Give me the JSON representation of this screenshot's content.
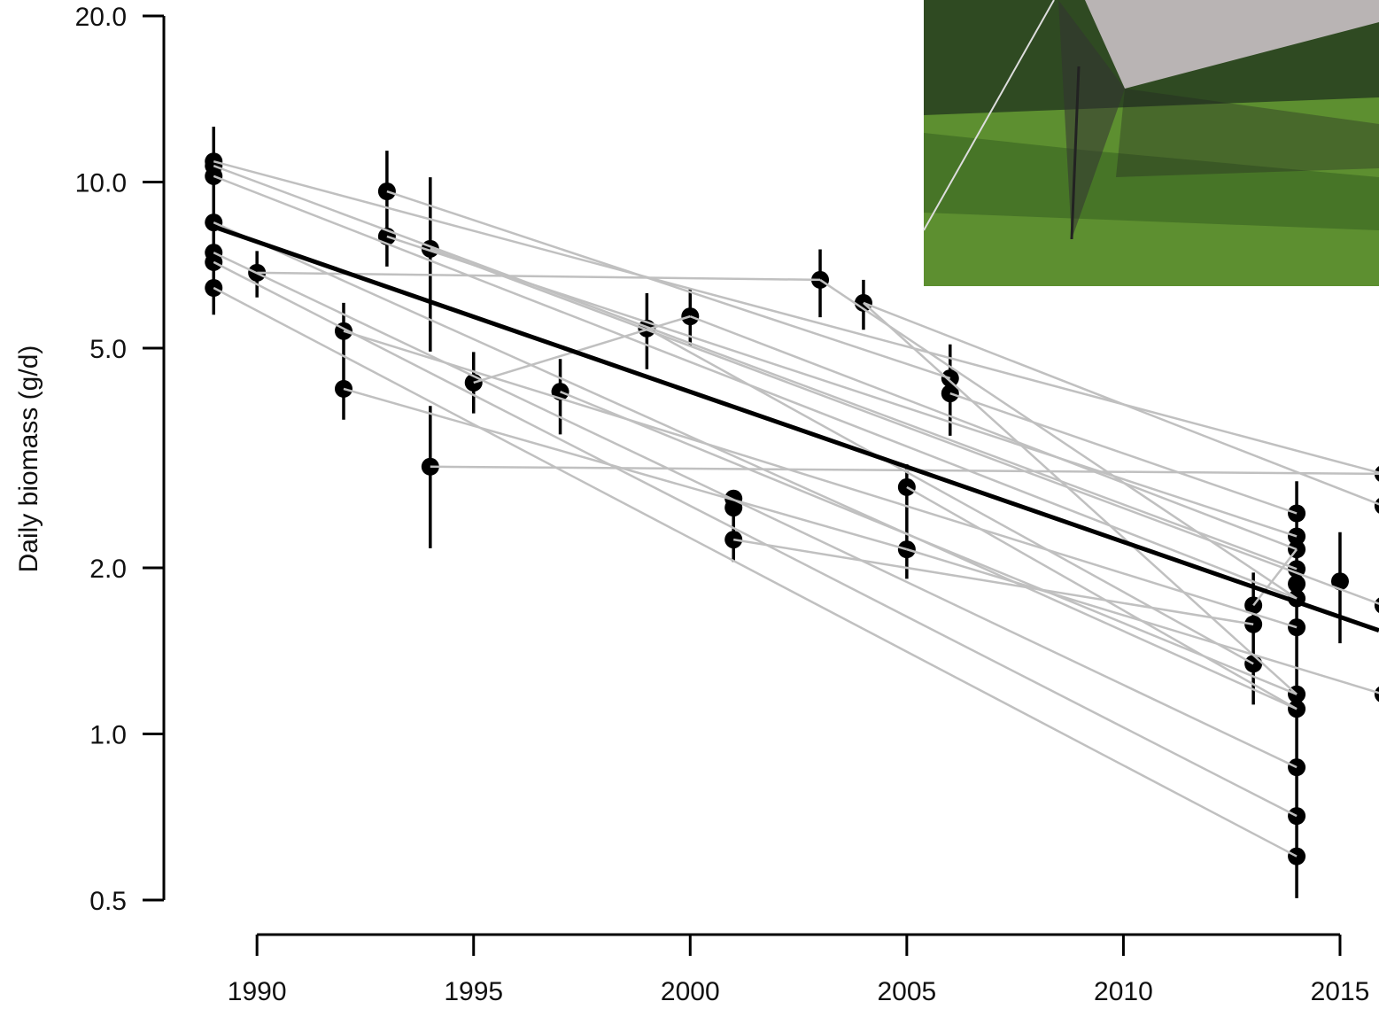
{
  "chart_data": {
    "type": "scatter",
    "y_label": "Daily biomass (g/d)",
    "log_y": true,
    "xlim": [
      1987.85,
      2015.9
    ],
    "ylim": [
      0.5,
      20
    ],
    "xticks": [
      1990,
      1995,
      2000,
      2005,
      2010,
      2015
    ],
    "yticks": [
      {
        "value": 0.5,
        "label": "0.5"
      },
      {
        "value": 1,
        "label": "1.0"
      },
      {
        "value": 2,
        "label": "2.0"
      },
      {
        "value": 5,
        "label": "5.0"
      },
      {
        "value": 10,
        "label": "10.0"
      },
      {
        "value": 20,
        "label": "20.0"
      }
    ],
    "point_color": "#000000",
    "track_color": "#c0c0c0",
    "fit_color": "#000000",
    "points": {
      "x": [
        1989,
        1989,
        1989,
        1989,
        1989,
        1989,
        1989,
        1990,
        1992,
        1992,
        1993,
        1993,
        1994,
        1994,
        1995,
        1997,
        1999,
        2000,
        2001,
        2001,
        2001,
        2003,
        2004,
        2005,
        2005,
        2006,
        2006,
        2013,
        2013,
        2013,
        2014,
        2014,
        2014,
        2014,
        2014,
        2014,
        2014,
        2014,
        2014,
        2014,
        2014,
        2014,
        2015,
        2016,
        2016,
        2016,
        2016
      ],
      "y": [
        10.9,
        10.7,
        10.25,
        8.45,
        7.45,
        7.16,
        6.43,
        6.85,
        5.37,
        4.22,
        9.62,
        7.97,
        7.57,
        3.05,
        4.33,
        4.17,
        5.43,
        5.71,
        2.67,
        2.57,
        2.25,
        6.65,
        6.04,
        2.8,
        2.16,
        4.41,
        4.14,
        1.71,
        1.58,
        1.34,
        2.51,
        2.28,
        2.16,
        1.99,
        1.87,
        1.76,
        1.56,
        1.18,
        1.11,
        0.87,
        0.71,
        0.6,
        1.89,
        2.96,
        2.59,
        1.71,
        1.18
      ]
    },
    "error_bars": {
      "x": [
        1989,
        1990,
        1992,
        1993,
        1994,
        1994,
        1995,
        1997,
        1999,
        2000,
        2001,
        2003,
        2004,
        2005,
        2006,
        2013,
        2014,
        2015
      ],
      "low": [
        5.75,
        6.18,
        3.71,
        7.03,
        4.93,
        2.17,
        3.81,
        3.49,
        4.58,
        5.04,
        2.05,
        5.69,
        5.4,
        1.91,
        3.47,
        1.13,
        0.504,
        1.46
      ],
      "high": [
        12.6,
        7.5,
        6.04,
        11.4,
        10.2,
        3.93,
        4.92,
        4.78,
        6.29,
        6.43,
        2.75,
        7.55,
        6.65,
        3.08,
        5.08,
        1.96,
        2.87,
        2.32
      ]
    },
    "tracks": [
      {
        "x": [
          1989,
          2016
        ],
        "y": [
          10.9,
          2.96
        ]
      },
      {
        "x": [
          1989,
          2014
        ],
        "y": [
          10.7,
          1.99
        ]
      },
      {
        "x": [
          1989,
          2014
        ],
        "y": [
          10.25,
          1.76
        ]
      },
      {
        "x": [
          1989,
          2014
        ],
        "y": [
          8.45,
          1.11
        ]
      },
      {
        "x": [
          1989,
          2014
        ],
        "y": [
          7.45,
          0.87
        ]
      },
      {
        "x": [
          1989,
          2014
        ],
        "y": [
          7.16,
          0.71
        ]
      },
      {
        "x": [
          1989,
          2014
        ],
        "y": [
          6.43,
          0.6
        ]
      },
      {
        "x": [
          1990,
          2003
        ],
        "y": [
          6.85,
          6.65
        ]
      },
      {
        "x": [
          2003,
          2014
        ],
        "y": [
          6.65,
          1.76
        ]
      },
      {
        "x": [
          2004,
          2016
        ],
        "y": [
          6.04,
          2.59
        ]
      },
      {
        "x": [
          2004,
          2014
        ],
        "y": [
          6.04,
          1.18
        ]
      },
      {
        "x": [
          1992,
          2014
        ],
        "y": [
          5.37,
          1.56
        ]
      },
      {
        "x": [
          1992,
          2005
        ],
        "y": [
          4.22,
          2.16
        ]
      },
      {
        "x": [
          1993,
          2006
        ],
        "y": [
          9.62,
          4.41
        ]
      },
      {
        "x": [
          1993,
          2014
        ],
        "y": [
          7.97,
          2.28
        ]
      },
      {
        "x": [
          1994,
          2016
        ],
        "y": [
          7.57,
          1.71
        ]
      },
      {
        "x": [
          1994,
          2016
        ],
        "y": [
          3.05,
          2.96
        ]
      },
      {
        "x": [
          1995,
          2000
        ],
        "y": [
          4.33,
          5.71
        ]
      },
      {
        "x": [
          2000,
          2014
        ],
        "y": [
          5.71,
          2.16
        ]
      },
      {
        "x": [
          1997,
          2014
        ],
        "y": [
          4.17,
          1.18
        ]
      },
      {
        "x": [
          1999,
          2013
        ],
        "y": [
          5.43,
          1.34
        ]
      },
      {
        "x": [
          2001,
          2013
        ],
        "y": [
          2.25,
          1.58
        ]
      },
      {
        "x": [
          2005,
          2014
        ],
        "y": [
          2.8,
          1.11
        ]
      },
      {
        "x": [
          2005,
          2016
        ],
        "y": [
          2.16,
          1.18
        ]
      },
      {
        "x": [
          2006,
          2014
        ],
        "y": [
          4.14,
          2.51
        ]
      },
      {
        "x": [
          2013,
          2014
        ],
        "y": [
          1.71,
          2.16
        ]
      }
    ],
    "fit": {
      "x": [
        1989,
        2015.9
      ],
      "y": [
        8.3,
        1.54
      ]
    }
  }
}
